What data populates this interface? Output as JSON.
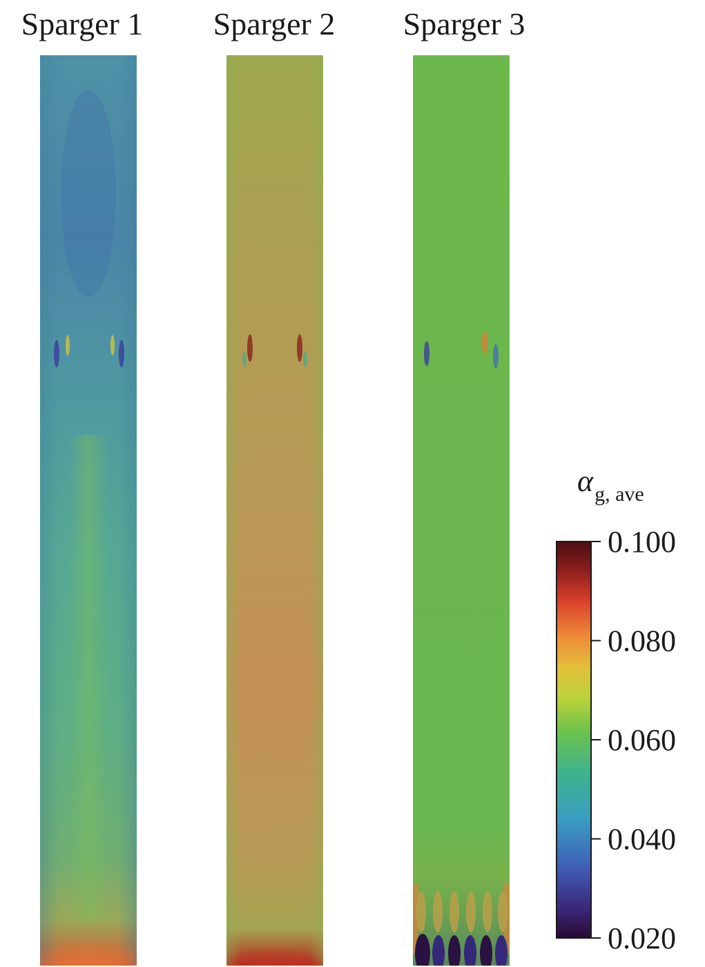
{
  "panels": [
    {
      "title": "Sparger 1"
    },
    {
      "title": "Sparger 2"
    },
    {
      "title": "Sparger 3"
    }
  ],
  "colorbar": {
    "title_symbol": "α",
    "title_subscript": "g, ave",
    "min": 0.02,
    "max": 0.1,
    "ticks": [
      "0.100",
      "0.080",
      "0.060",
      "0.040",
      "0.020"
    ],
    "colormap": [
      "#2a0a33",
      "#3b2a7e",
      "#3f5fb5",
      "#3a9dc2",
      "#3fb38a",
      "#6cc24c",
      "#b6d23a",
      "#e2c13a",
      "#ee8a38",
      "#d8402a",
      "#8b1d1d",
      "#4a0f12"
    ]
  },
  "fields": {
    "sparger_1": {
      "base": "#4f9ca0",
      "upper": "#4d88a6",
      "lower": "#62b27a",
      "bottom": "#e06a3a"
    },
    "sparger_2": {
      "base": "#b8a55a",
      "upper": "#9eae50",
      "lower": "#c89452",
      "bottom": "#b2281e"
    },
    "sparger_3": {
      "base": "#6db84e",
      "upper": "#6ab84c",
      "lower": "#6cb64e",
      "bottom": "#2a1240"
    }
  }
}
